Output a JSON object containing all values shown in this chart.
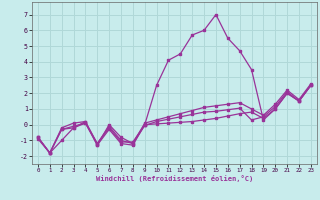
{
  "xlabel": "Windchill (Refroidissement éolien,°C)",
  "xlim": [
    -0.5,
    23.5
  ],
  "ylim": [
    -2.5,
    7.8
  ],
  "xticks": [
    0,
    1,
    2,
    3,
    4,
    5,
    6,
    7,
    8,
    9,
    10,
    11,
    12,
    13,
    14,
    15,
    16,
    17,
    18,
    19,
    20,
    21,
    22,
    23
  ],
  "yticks": [
    -2,
    -1,
    0,
    1,
    2,
    3,
    4,
    5,
    6,
    7
  ],
  "bg_color": "#c8ecec",
  "grid_color": "#b0d8d8",
  "line_color": "#993399",
  "line1_y": [
    -0.8,
    -1.8,
    -0.3,
    -0.2,
    0.1,
    -1.3,
    -0.3,
    -1.2,
    -1.3,
    0.0,
    0.05,
    0.1,
    0.15,
    0.2,
    0.3,
    0.4,
    0.55,
    0.7,
    0.8,
    0.4,
    1.0,
    2.0,
    1.5,
    2.5
  ],
  "line2_y": [
    -0.8,
    -1.8,
    -0.2,
    0.1,
    0.2,
    -1.3,
    0.0,
    -0.8,
    -1.2,
    -0.05,
    0.2,
    0.35,
    0.5,
    0.65,
    0.8,
    0.85,
    0.95,
    1.05,
    0.3,
    0.5,
    1.15,
    2.1,
    1.5,
    2.5
  ],
  "line3_y": [
    -0.9,
    -1.8,
    -1.0,
    -0.2,
    0.2,
    -1.2,
    -0.2,
    -1.1,
    -1.1,
    0.0,
    2.5,
    4.1,
    4.5,
    5.7,
    6.0,
    7.0,
    5.5,
    4.7,
    3.5,
    0.3,
    1.0,
    2.0,
    1.5,
    2.5
  ],
  "line4_y": [
    -0.8,
    -1.8,
    -0.3,
    -0.1,
    0.1,
    -1.2,
    -0.1,
    -1.0,
    -1.2,
    0.1,
    0.3,
    0.5,
    0.7,
    0.9,
    1.1,
    1.2,
    1.3,
    1.4,
    1.0,
    0.6,
    1.3,
    2.2,
    1.6,
    2.6
  ]
}
